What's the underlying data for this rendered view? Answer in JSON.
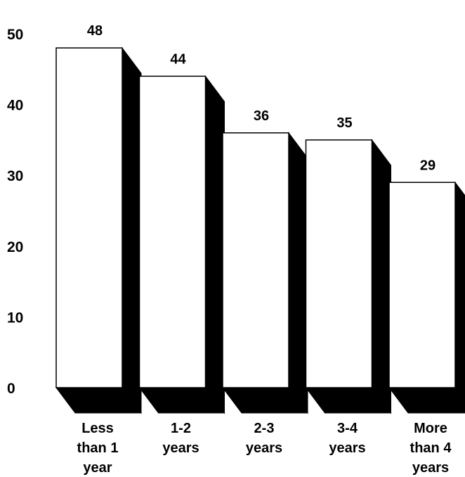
{
  "chart_data": {
    "type": "bar",
    "style": "3d",
    "categories": [
      [
        "Less",
        "than 1",
        "year"
      ],
      [
        "1-2",
        "years"
      ],
      [
        "2-3",
        "years"
      ],
      [
        "3-4",
        "years"
      ],
      [
        "More",
        "than 4",
        "years"
      ]
    ],
    "values": [
      48,
      44,
      36,
      35,
      29
    ],
    "data_labels": [
      "48",
      "44",
      "36",
      "35",
      "29"
    ],
    "y_ticks": [
      "0",
      "10",
      "20",
      "30",
      "40",
      "50"
    ],
    "ylim": [
      0,
      50
    ],
    "grid": false,
    "legend": "none",
    "colors": {
      "bar_face": "#ffffff",
      "bar_side": "#000000",
      "outline": "#000000"
    }
  }
}
